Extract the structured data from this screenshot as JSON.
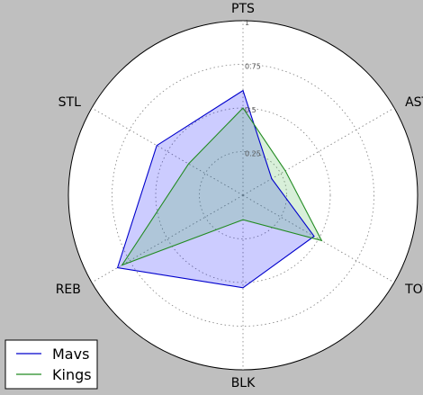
{
  "chart_data": {
    "type": "radar",
    "title": "",
    "axes": [
      "PTS",
      "AST",
      "TOV",
      "BLK",
      "REB",
      "STL"
    ],
    "radial_ticks": [
      {
        "value": 0.25,
        "label": "0.25"
      },
      {
        "value": 0.5,
        "label": "0.5"
      },
      {
        "value": 0.75,
        "label": "0.75"
      },
      {
        "value": 1.0,
        "label": "1"
      }
    ],
    "rlim": [
      0,
      1
    ],
    "grid": true,
    "legend_position": "lower-left",
    "series": [
      {
        "name": "Mavs",
        "color": "#0000cc",
        "fill": "#0000ff",
        "values": [
          0.6,
          0.19,
          0.47,
          0.53,
          0.83,
          0.57
        ]
      },
      {
        "name": "Kings",
        "color": "#228b22",
        "fill": "#3cb043",
        "values": [
          0.5,
          0.28,
          0.52,
          0.14,
          0.8,
          0.36
        ]
      }
    ]
  }
}
